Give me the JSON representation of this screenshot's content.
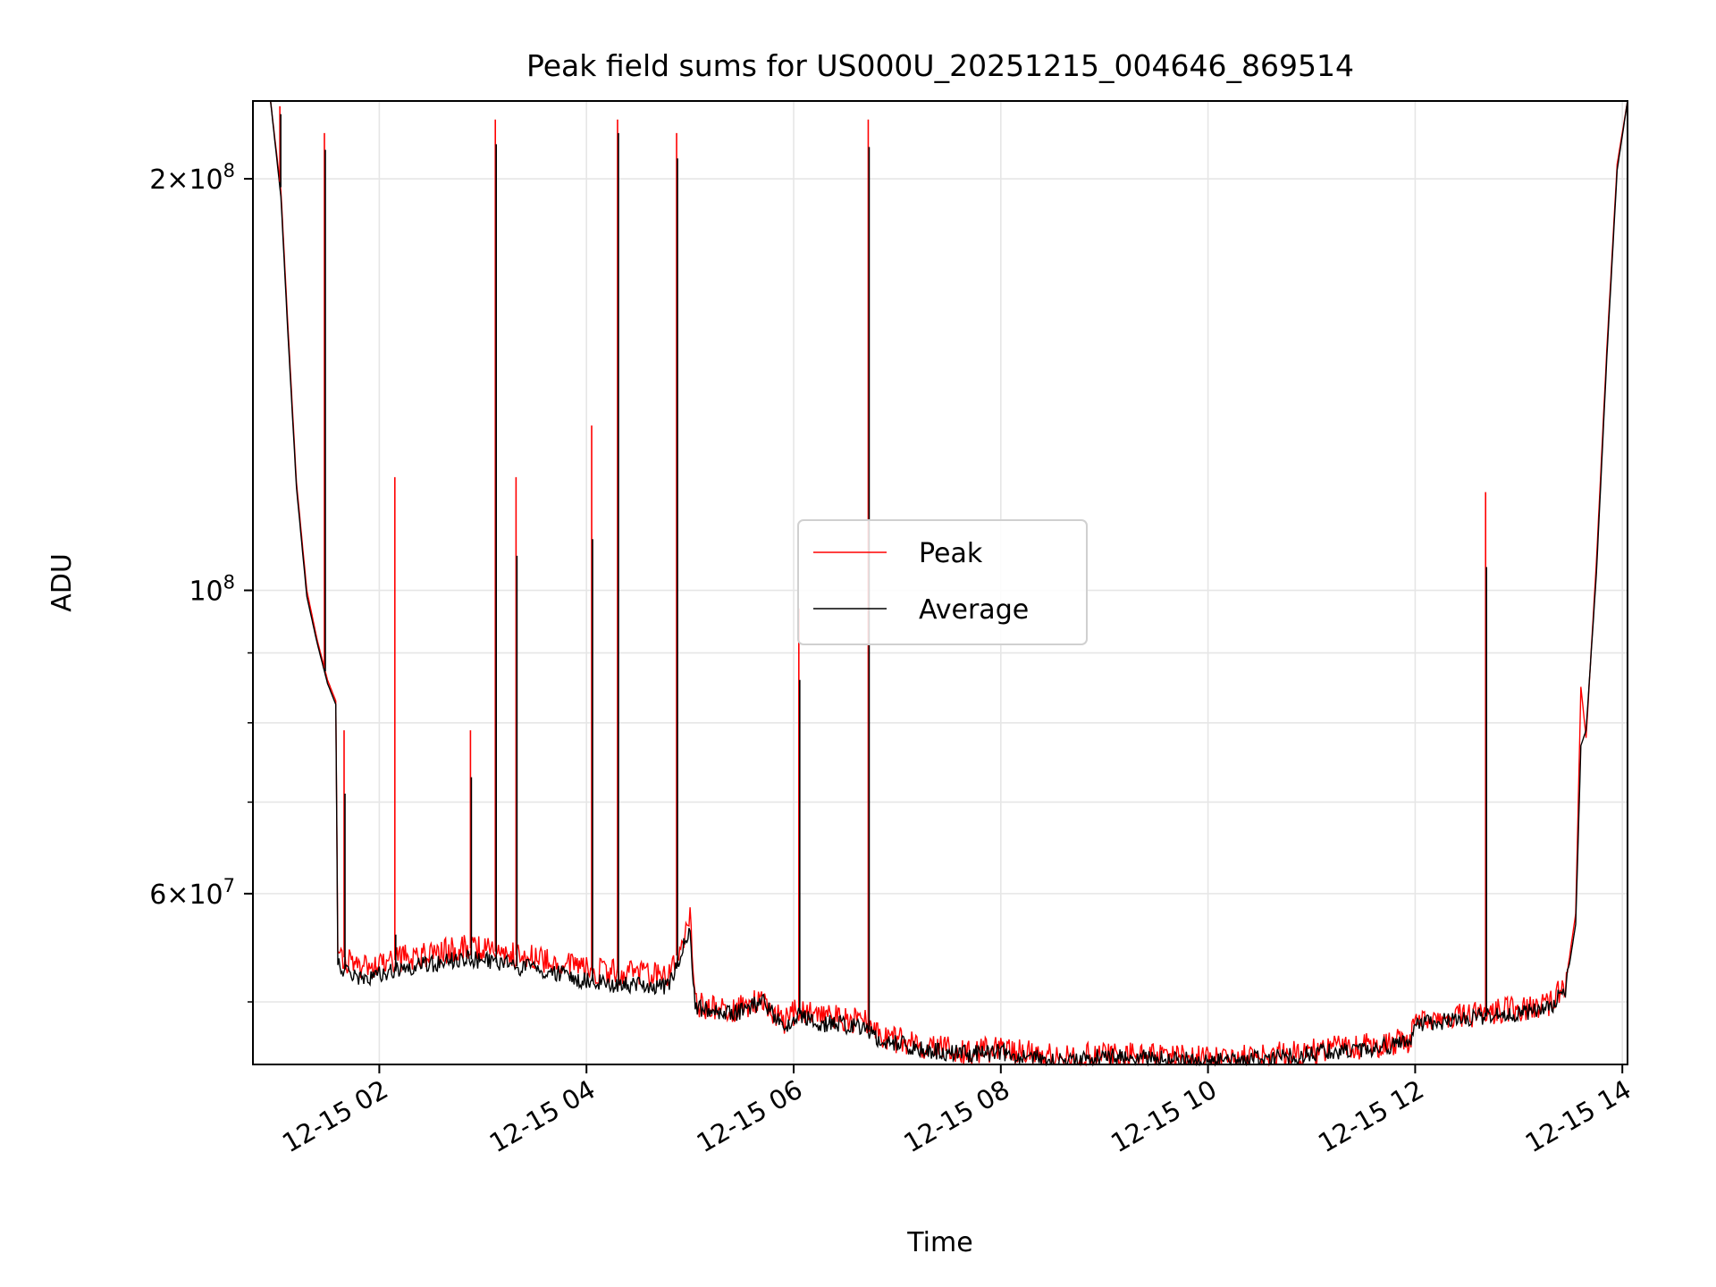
{
  "chart_data": {
    "type": "line",
    "title": "Peak field sums for US000U_20251215_004646_869514",
    "xlabel": "Time",
    "ylabel": "ADU",
    "yscale": "log",
    "xlim": [
      0.78,
      14.05
    ],
    "ylim": [
      45000000,
      228000000
    ],
    "x_ticks": [
      {
        "x": 2,
        "label": "12-15 02"
      },
      {
        "x": 4,
        "label": "12-15 04"
      },
      {
        "x": 6,
        "label": "12-15 06"
      },
      {
        "x": 8,
        "label": "12-15 08"
      },
      {
        "x": 10,
        "label": "12-15 10"
      },
      {
        "x": 12,
        "label": "12-15 12"
      },
      {
        "x": 14,
        "label": "12-15 14"
      }
    ],
    "y_major_ticks": [
      {
        "y": 60000000,
        "base": "6",
        "exp": "7"
      },
      {
        "y": 100000000,
        "base": "10",
        "exp": "8"
      },
      {
        "y": 200000000,
        "base": "2",
        "exp": "8"
      }
    ],
    "y_minor_grid": [
      50000000,
      60000000,
      70000000,
      80000000,
      90000000,
      200000000
    ],
    "legend": {
      "position": "center",
      "entries": [
        "Peak",
        "Average"
      ]
    },
    "series": [
      {
        "name": "Peak",
        "color": "#ff0000",
        "x": [
          0.78,
          0.95,
          1.05,
          1.12,
          1.2,
          1.3,
          1.4,
          1.5,
          1.58,
          1.6,
          1.7,
          1.8,
          2.0,
          2.2,
          2.5,
          2.8,
          3.0,
          3.2,
          3.5,
          3.8,
          4.0,
          4.2,
          4.5,
          4.8,
          5.0,
          5.05,
          5.3,
          5.5,
          5.7,
          5.9,
          6.05,
          6.2,
          6.5,
          6.7,
          6.8,
          7.0,
          7.3,
          7.6,
          8.0,
          8.3,
          8.6,
          8.9,
          9.2,
          9.5,
          9.8,
          10.0,
          10.4,
          10.8,
          11.2,
          11.6,
          11.95,
          12.0,
          12.3,
          12.7,
          13.0,
          13.3,
          13.45,
          13.55,
          13.6,
          13.65,
          13.75,
          13.85,
          13.95,
          14.05
        ],
        "y": [
          228000000,
          228000000,
          196000000,
          155000000,
          120000000,
          100000000,
          92000000,
          86000000,
          83000000,
          54500000,
          53500000,
          53200000,
          53200000,
          53800000,
          54200000,
          54800000,
          54600000,
          54300000,
          53800000,
          53400000,
          52800000,
          52600000,
          52400000,
          52300000,
          57500000,
          49800000,
          49300000,
          49500000,
          50400000,
          48200000,
          49500000,
          48800000,
          48600000,
          48300000,
          47200000,
          46900000,
          46400000,
          46000000,
          46100000,
          45800000,
          45500000,
          45700000,
          45800000,
          45600000,
          45500000,
          45400000,
          45600000,
          45800000,
          46200000,
          46500000,
          46900000,
          48300000,
          48800000,
          49100000,
          49400000,
          49800000,
          51500000,
          58000000,
          85000000,
          78000000,
          105000000,
          150000000,
          205000000,
          228000000
        ]
      },
      {
        "name": "Average",
        "color": "#000000",
        "x": [
          0.78,
          0.95,
          1.05,
          1.12,
          1.2,
          1.3,
          1.4,
          1.5,
          1.58,
          1.6,
          1.7,
          1.8,
          2.0,
          2.2,
          2.5,
          2.8,
          3.0,
          3.2,
          3.5,
          3.8,
          4.0,
          4.2,
          4.5,
          4.8,
          5.0,
          5.05,
          5.3,
          5.5,
          5.7,
          5.9,
          6.05,
          6.2,
          6.5,
          6.7,
          6.8,
          7.0,
          7.3,
          7.6,
          8.0,
          8.3,
          8.6,
          8.9,
          9.2,
          9.5,
          9.8,
          10.0,
          10.4,
          10.8,
          11.2,
          11.6,
          11.95,
          12.0,
          12.3,
          12.7,
          13.0,
          13.3,
          13.45,
          13.55,
          13.6,
          13.65,
          13.75,
          13.85,
          13.95,
          14.05
        ],
        "y": [
          228000000,
          228000000,
          194000000,
          153000000,
          119000000,
          99000000,
          91500000,
          85500000,
          82500000,
          53200000,
          52500000,
          52200000,
          52300000,
          52800000,
          53300000,
          53800000,
          53600000,
          53300000,
          52800000,
          52400000,
          51800000,
          51600000,
          51400000,
          51300000,
          56500000,
          49500000,
          49000000,
          49200000,
          50100000,
          47800000,
          49000000,
          48300000,
          48100000,
          47900000,
          46900000,
          46600000,
          46100000,
          45800000,
          45900000,
          45600000,
          45300000,
          45500000,
          45600000,
          45400000,
          45300000,
          45200000,
          45400000,
          45600000,
          46000000,
          46300000,
          46700000,
          48000000,
          48500000,
          48800000,
          49100000,
          49500000,
          51000000,
          57000000,
          77000000,
          79000000,
          103000000,
          148000000,
          203000000,
          228000000
        ]
      }
    ],
    "spikes": [
      {
        "x": 1.04,
        "peak": 226000000,
        "avg": 223000000
      },
      {
        "x": 1.47,
        "peak": 216000000,
        "avg": 210000000
      },
      {
        "x": 1.66,
        "peak": 79000000,
        "avg": 71000000
      },
      {
        "x": 2.15,
        "peak": 121000000,
        "avg": 56000000
      },
      {
        "x": 2.88,
        "peak": 79000000,
        "avg": 73000000
      },
      {
        "x": 3.12,
        "peak": 221000000,
        "avg": 212000000
      },
      {
        "x": 3.32,
        "peak": 121000000,
        "avg": 106000000
      },
      {
        "x": 4.05,
        "peak": 132000000,
        "avg": 109000000
      },
      {
        "x": 4.3,
        "peak": 221000000,
        "avg": 216000000
      },
      {
        "x": 4.87,
        "peak": 216000000,
        "avg": 207000000
      },
      {
        "x": 6.05,
        "peak": 97000000,
        "avg": 86000000
      },
      {
        "x": 6.72,
        "peak": 221000000,
        "avg": 211000000
      },
      {
        "x": 12.68,
        "peak": 118000000,
        "avg": 104000000
      }
    ]
  }
}
